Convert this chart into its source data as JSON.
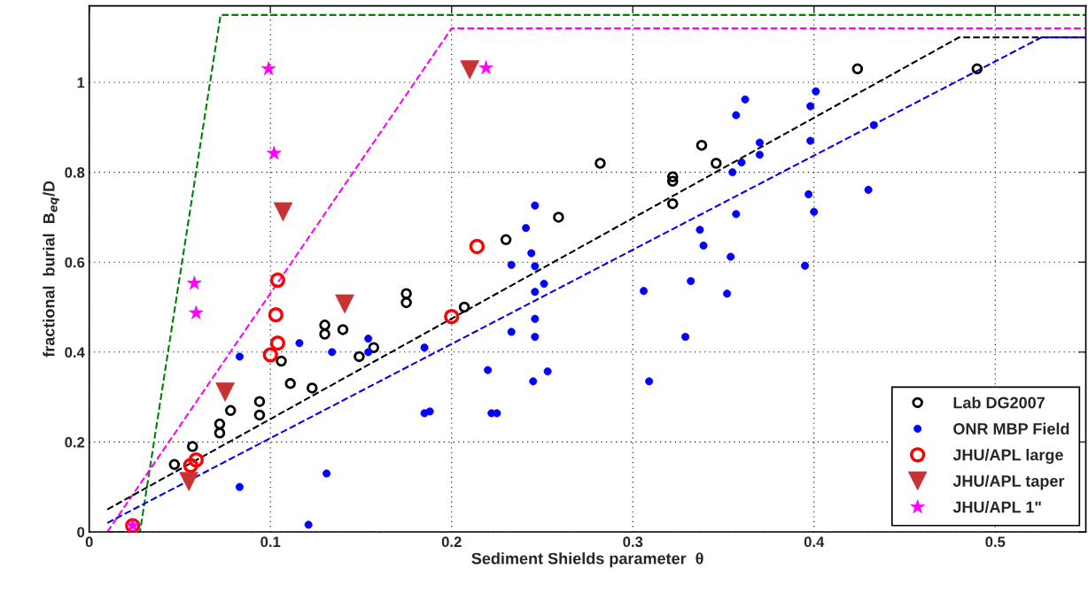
{
  "chart_data": {
    "type": "scatter",
    "xlabel": "Sediment Shields parameter  θ",
    "ylabel": "fractional  burial  B$_{eq}$/D",
    "xlim": [
      0,
      0.55
    ],
    "ylim": [
      0,
      1.17
    ],
    "xticks": [
      0,
      0.1,
      0.2,
      0.3,
      0.4,
      0.5
    ],
    "yticks": [
      0,
      0.2,
      0.4,
      0.6,
      0.8,
      1
    ],
    "grid": true,
    "legend": "bottom right",
    "series": [
      {
        "name": "Lab DG2007",
        "color": "#000000",
        "marker": "circle",
        "x": [
          0.047,
          0.057,
          0.072,
          0.072,
          0.078,
          0.094,
          0.094,
          0.106,
          0.111,
          0.123,
          0.13,
          0.13,
          0.14,
          0.149,
          0.157,
          0.175,
          0.175,
          0.207,
          0.23,
          0.259,
          0.282,
          0.322,
          0.322,
          0.322,
          0.338,
          0.346,
          0.424,
          0.49
        ],
        "values": [
          0.15,
          0.19,
          0.24,
          0.22,
          0.27,
          0.29,
          0.26,
          0.38,
          0.33,
          0.32,
          0.46,
          0.44,
          0.45,
          0.39,
          0.41,
          0.53,
          0.51,
          0.5,
          0.65,
          0.7,
          0.82,
          0.79,
          0.78,
          0.73,
          0.86,
          0.82,
          1.03,
          1.03
        ]
      },
      {
        "name": "ONR MBP Field",
        "color": "#0000ff",
        "marker": "circle",
        "x": [
          0.083,
          0.083,
          0.116,
          0.131,
          0.121,
          0.134,
          0.154,
          0.154,
          0.185,
          0.185,
          0.188,
          0.22,
          0.222,
          0.225,
          0.233,
          0.233,
          0.241,
          0.246,
          0.244,
          0.246,
          0.246,
          0.251,
          0.246,
          0.246,
          0.245,
          0.253,
          0.306,
          0.309,
          0.329,
          0.332,
          0.337,
          0.339,
          0.352,
          0.354,
          0.355,
          0.357,
          0.355,
          0.357,
          0.36,
          0.362,
          0.37,
          0.37,
          0.401,
          0.398,
          0.398,
          0.433,
          0.397,
          0.4,
          0.43,
          0.395
        ],
        "values": [
          0.39,
          0.1,
          0.42,
          0.13,
          0.016,
          0.4,
          0.43,
          0.4,
          0.41,
          0.264,
          0.268,
          0.36,
          0.264,
          0.264,
          0.445,
          0.594,
          0.676,
          0.726,
          0.62,
          0.591,
          0.534,
          0.552,
          0.474,
          0.434,
          0.335,
          0.357,
          0.536,
          0.335,
          0.434,
          0.558,
          0.672,
          0.637,
          0.53,
          0.612,
          null,
          0.707,
          0.8,
          0.927,
          0.822,
          0.962,
          0.866,
          0.839,
          0.98,
          0.947,
          0.87,
          0.905,
          0.751,
          0.712,
          0.761,
          0.592
        ]
      },
      {
        "name": "JHU/APL large",
        "color": "#ff0000",
        "marker": "circle",
        "x": [
          0.024,
          0.056,
          0.059,
          0.104,
          0.103,
          0.104,
          0.102,
          0.1,
          0.2,
          0.214
        ],
        "values": [
          0.014,
          0.148,
          0.16,
          0.56,
          0.483,
          0.42,
          null,
          0.394,
          0.479,
          0.635
        ]
      },
      {
        "name": "JHU/APL taper",
        "color": "#c83232",
        "marker": "triangle",
        "x": [
          0.055,
          0.075,
          0.107,
          0.141,
          0.21
        ],
        "values": [
          0.112,
          0.311,
          0.712,
          0.507,
          1.028
        ]
      },
      {
        "name": "JHU/APL 1\"",
        "color": "#ff00ff",
        "marker": "star",
        "x": [
          0.024,
          0.058,
          0.059,
          0.102,
          0.099,
          0.219
        ],
        "values": [
          0.014,
          0.553,
          0.487,
          0.842,
          1.03,
          1.032
        ]
      },
      {
        "type": "line",
        "color": "#008000",
        "line_style": "dashed",
        "x": [
          0.01,
          0.028,
          0.0725,
          0.55
        ],
        "values": [
          0,
          0,
          1.15,
          1.15
        ]
      },
      {
        "type": "line",
        "color": "#ff00ff",
        "line_style": "dashed",
        "x": [
          0.01,
          0.2,
          0.55
        ],
        "values": [
          0,
          1.12,
          1.12
        ]
      },
      {
        "type": "line",
        "color": "#000000",
        "line_style": "dashed",
        "x": [
          0.01,
          0.48,
          0.55
        ],
        "values": [
          0.05,
          1.1,
          1.1
        ]
      },
      {
        "type": "line",
        "color": "#0000ff",
        "line_style": "dashed",
        "x": [
          0.01,
          0.5255,
          0.55
        ],
        "values": [
          0.02,
          1.1,
          1.1
        ]
      }
    ]
  }
}
